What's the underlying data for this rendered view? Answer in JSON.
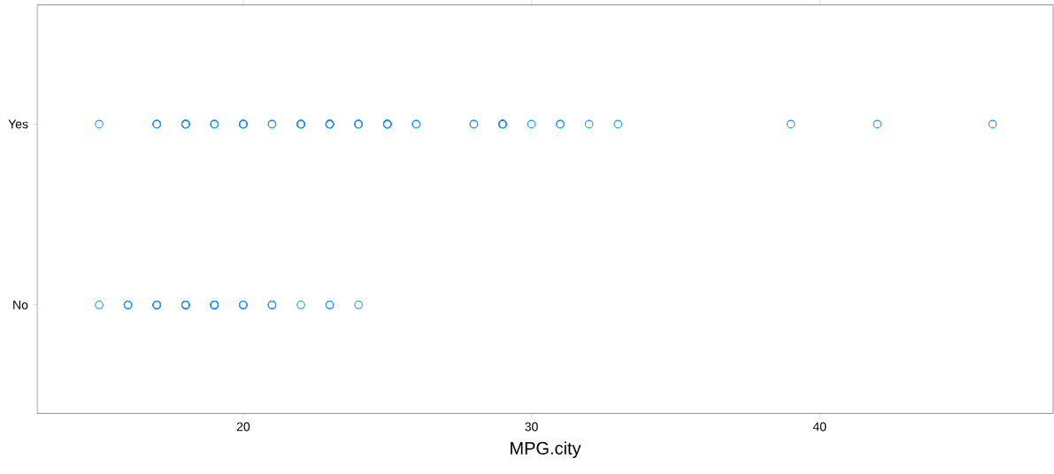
{
  "chart_data": {
    "type": "scatter",
    "xlabel": "MPG.city",
    "orientation": "horizontal",
    "categories": [
      "Yes",
      "No"
    ],
    "series": [
      {
        "color": "#1e90ff",
        "x": [
          "Yes",
          "Yes",
          "Yes",
          "Yes",
          "Yes",
          "Yes",
          "Yes",
          "Yes",
          "Yes",
          "Yes",
          "Yes",
          "Yes",
          "Yes",
          "Yes",
          "Yes",
          "Yes",
          "Yes",
          "Yes",
          "Yes",
          "Yes",
          "Yes",
          "Yes",
          "Yes",
          "Yes",
          "Yes",
          "Yes",
          "Yes",
          "Yes",
          "Yes",
          "Yes",
          "Yes",
          "Yes",
          "Yes",
          "Yes",
          "Yes",
          "Yes",
          "Yes",
          "Yes",
          "Yes",
          "Yes",
          "Yes",
          "Yes",
          "Yes",
          "Yes",
          "Yes",
          "Yes",
          "Yes",
          "Yes",
          "Yes",
          "Yes",
          "Yes",
          "Yes",
          "Yes",
          "Yes",
          "Yes",
          "Yes",
          "Yes",
          "Yes",
          "Yes",
          "Yes",
          "Yes",
          "Yes",
          "No",
          "No",
          "No",
          "No",
          "No",
          "No",
          "No",
          "No",
          "No",
          "No",
          "No",
          "No",
          "No",
          "No",
          "No",
          "No",
          "No",
          "No",
          "No",
          "No",
          "No",
          "No",
          "No",
          "No",
          "No",
          "No",
          "No",
          "No",
          "No",
          "No"
        ],
        "values": [
          15,
          17,
          17,
          17,
          18,
          18,
          18,
          18,
          18,
          18,
          19,
          19,
          19,
          20,
          20,
          20,
          20,
          20,
          21,
          21,
          22,
          22,
          22,
          22,
          22,
          22,
          23,
          23,
          23,
          23,
          23,
          23,
          23,
          24,
          24,
          24,
          24,
          25,
          25,
          25,
          25,
          25,
          25,
          25,
          26,
          26,
          28,
          28,
          29,
          29,
          29,
          29,
          29,
          29,
          30,
          31,
          31,
          32,
          33,
          39,
          42,
          46,
          15,
          16,
          16,
          16,
          17,
          17,
          17,
          17,
          18,
          18,
          18,
          18,
          18,
          18,
          19,
          19,
          19,
          19,
          19,
          19,
          20,
          20,
          20,
          21,
          21,
          21,
          22,
          23,
          23,
          24
        ]
      }
    ],
    "marker": "circle",
    "grid": false,
    "xlim": [
      12.85,
      48.1
    ],
    "xticks": [
      20,
      30,
      40
    ]
  }
}
